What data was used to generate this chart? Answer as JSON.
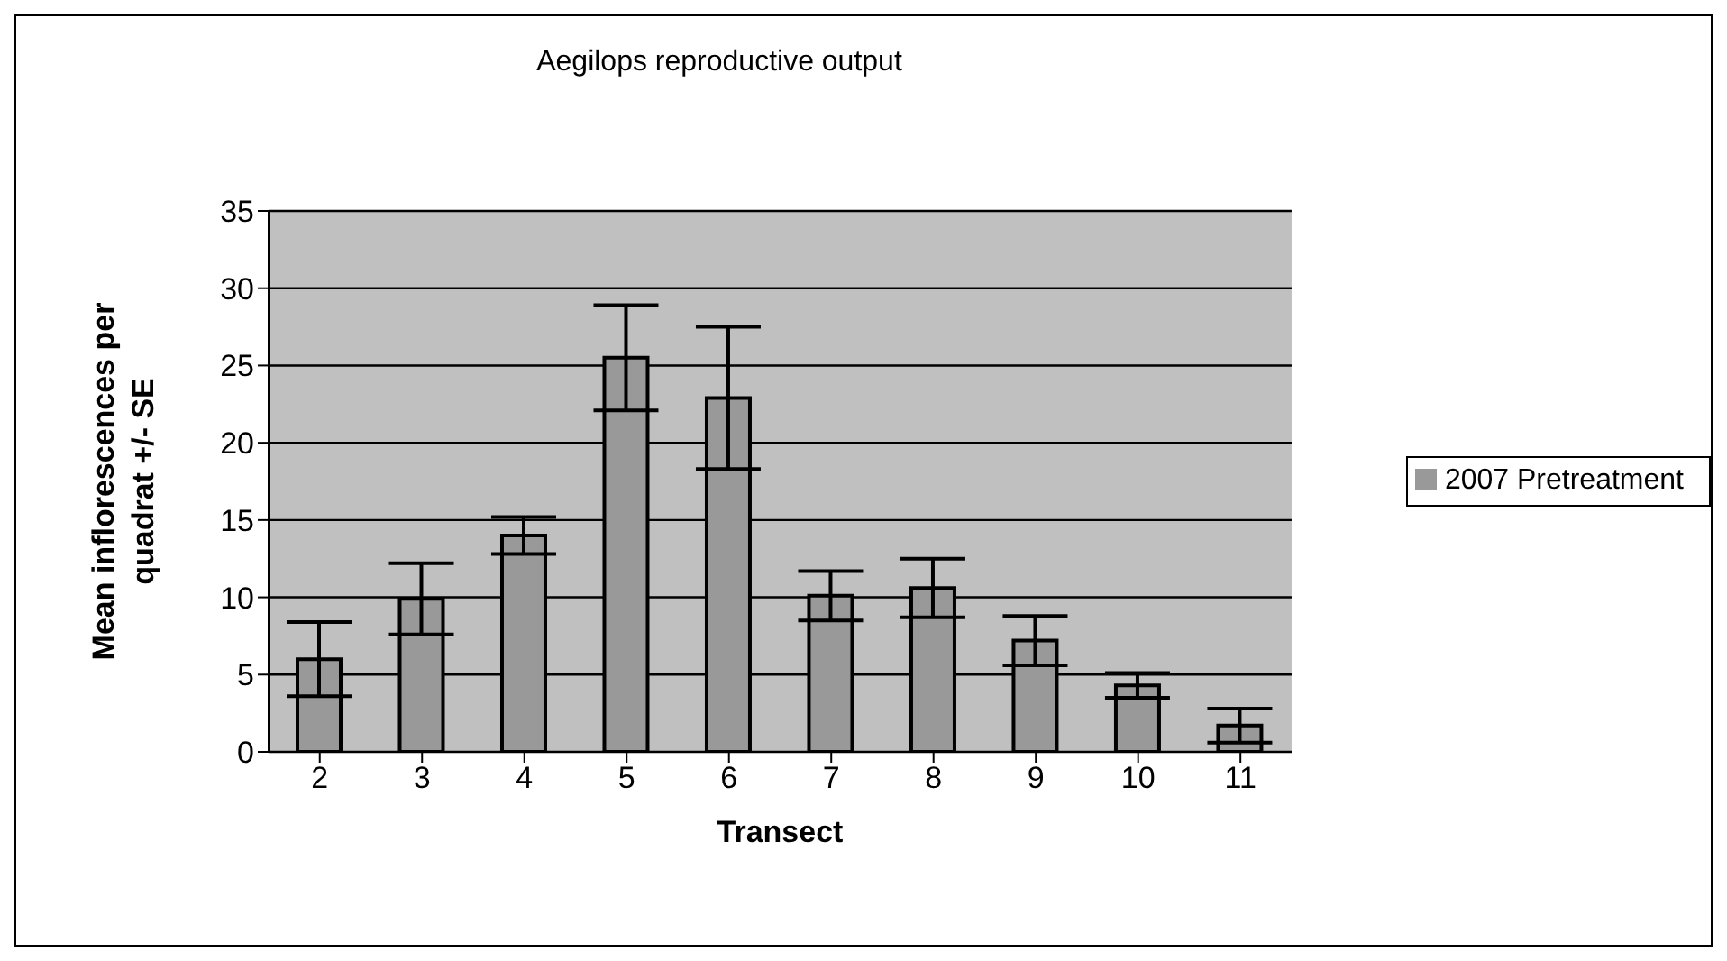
{
  "chart_data": {
    "type": "bar",
    "title": "Aegilops reproductive output",
    "xlabel": "Transect",
    "ylabel": "Mean inflorescences per quadrat +/- SE",
    "categories": [
      "2",
      "3",
      "4",
      "5",
      "6",
      "7",
      "8",
      "9",
      "10",
      "11"
    ],
    "series": [
      {
        "name": "2007 Pretreatment",
        "color": "#999999",
        "values": [
          6.0,
          9.9,
          14.0,
          25.5,
          22.9,
          10.1,
          10.6,
          7.2,
          4.3,
          1.7
        ],
        "errors": [
          2.4,
          2.3,
          1.2,
          3.4,
          4.6,
          1.6,
          1.9,
          1.6,
          0.8,
          1.1
        ]
      }
    ],
    "ylim": [
      0,
      35
    ],
    "yticks": [
      0,
      5,
      10,
      15,
      20,
      25,
      30,
      35
    ],
    "grid": "y",
    "legend": "right"
  }
}
